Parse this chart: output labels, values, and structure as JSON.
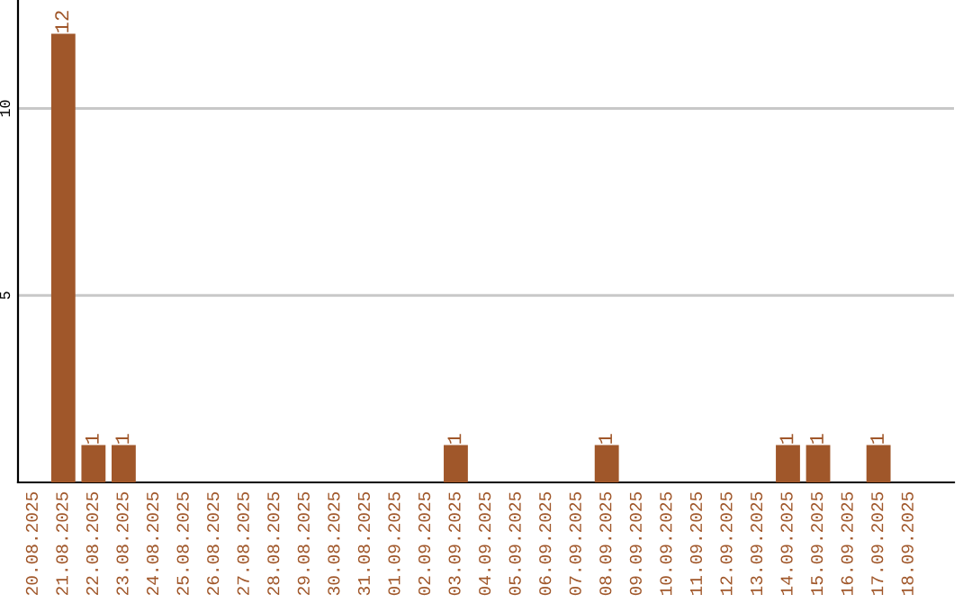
{
  "chart_data": {
    "type": "bar",
    "categories": [
      "20.08.2025",
      "21.08.2025",
      "22.08.2025",
      "23.08.2025",
      "24.08.2025",
      "25.08.2025",
      "26.08.2025",
      "27.08.2025",
      "28.08.2025",
      "29.08.2025",
      "30.08.2025",
      "31.08.2025",
      "01.09.2025",
      "02.09.2025",
      "03.09.2025",
      "04.09.2025",
      "05.09.2025",
      "06.09.2025",
      "07.09.2025",
      "08.09.2025",
      "09.09.2025",
      "10.09.2025",
      "11.09.2025",
      "12.09.2025",
      "13.09.2025",
      "14.09.2025",
      "15.09.2025",
      "16.09.2025",
      "17.09.2025",
      "18.09.2025"
    ],
    "values": [
      0,
      12,
      1,
      1,
      0,
      0,
      0,
      0,
      0,
      0,
      0,
      0,
      0,
      0,
      1,
      0,
      0,
      0,
      0,
      1,
      0,
      0,
      0,
      0,
      0,
      1,
      1,
      0,
      1,
      0
    ],
    "value_labels": [
      null,
      "12",
      "1",
      "1",
      null,
      null,
      null,
      null,
      null,
      null,
      null,
      null,
      null,
      null,
      "1",
      null,
      null,
      null,
      null,
      "1",
      null,
      null,
      null,
      null,
      null,
      "1",
      "1",
      null,
      "1",
      null
    ],
    "color": "#a0572a",
    "ylim": [
      0,
      12.9
    ],
    "yticks": [
      5,
      10
    ],
    "grid": "y",
    "legend": false
  }
}
